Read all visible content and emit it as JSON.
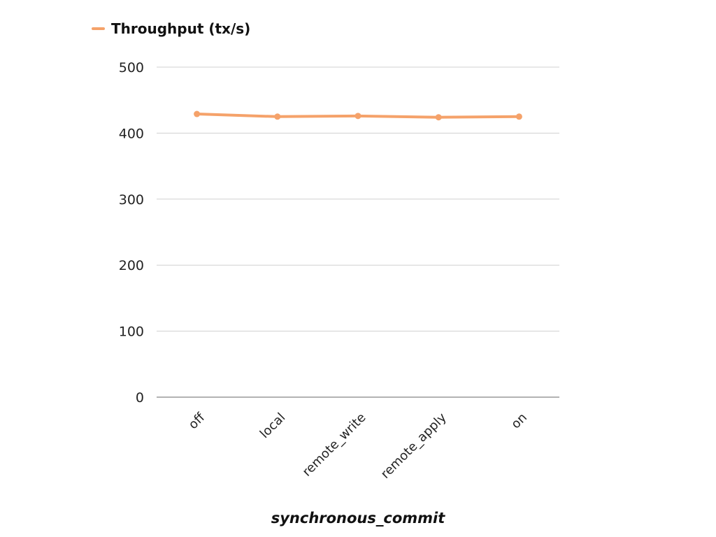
{
  "chart_data": {
    "type": "line",
    "categories": [
      "off",
      "local",
      "remote_write",
      "remote_apply",
      "on"
    ],
    "series": [
      {
        "name": "Throughput (tx/s)",
        "values": [
          429,
          425,
          426,
          424,
          425
        ],
        "color": "#F5A26A"
      }
    ],
    "xlabel": "synchronous_commit",
    "ylabel": "",
    "ylim": [
      0,
      500
    ],
    "yticks": [
      0,
      100,
      200,
      300,
      400,
      500
    ],
    "grid": true,
    "legend": "top-left"
  }
}
